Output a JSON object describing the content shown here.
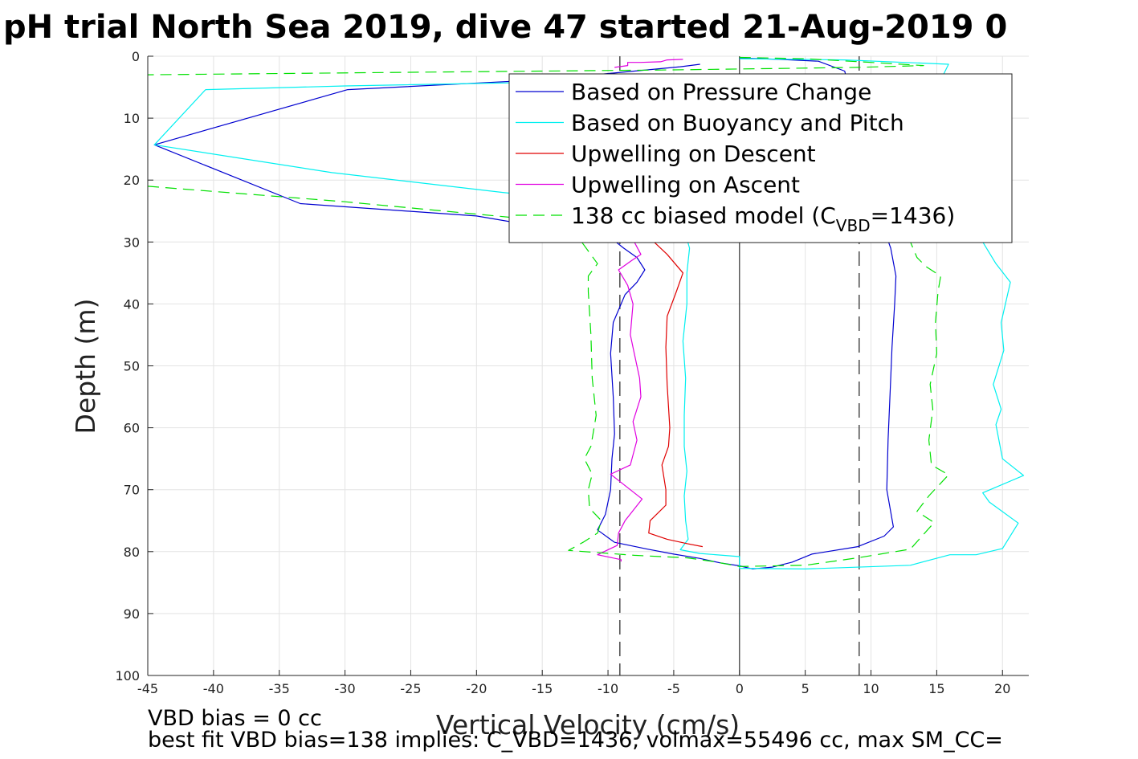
{
  "title": "pH trial North Sea 2019, dive 47 started 21-Aug-2019 0",
  "footer": {
    "line1": "VBD bias = 0 cc",
    "line2": "best fit VBD bias=138 implies: C_VBD=1436, volmax=55496 cc, max SM_CC="
  },
  "colors": {
    "pressure": "#0000d0",
    "buoyancy": "#00f0f0",
    "descent": "#e00000",
    "ascent": "#e000e0",
    "model": "#00e000",
    "grid": "#e3e3e3",
    "ref": "#555555"
  },
  "chart_data": {
    "type": "line",
    "title": "pH trial North Sea 2019, dive 47 started 21-Aug-2019 0",
    "xlabel": "Vertical Velocity (cm/s)",
    "ylabel": "Depth (m)",
    "xlim": [
      -45,
      22
    ],
    "ylim": [
      100,
      0
    ],
    "y_reversed": true,
    "grid": true,
    "xticks": [
      "-45",
      "-40",
      "-35",
      "-30",
      "-25",
      "-20",
      "-15",
      "-10",
      "-5",
      "0",
      "5",
      "10",
      "15",
      "20"
    ],
    "yticks": [
      "0",
      "10",
      "20",
      "30",
      "40",
      "50",
      "60",
      "70",
      "80",
      "90",
      "100"
    ],
    "legend_position": "top-right",
    "legend": [
      {
        "label": "Based on Pressure Change",
        "series": 0
      },
      {
        "label": "Based on Buoyancy and Pitch",
        "series": 1
      },
      {
        "label": "Upwelling on Descent",
        "series": 2
      },
      {
        "label": "Upwelling on Ascent",
        "series": 3
      },
      {
        "label": "138 cc biased model (C",
        "sub": "VBD",
        "suffix": "=1436)",
        "series": 4
      }
    ],
    "reference_lines": {
      "solid_x": [
        0
      ],
      "dashed_x": [
        -9.1,
        9.1
      ]
    },
    "series": [
      {
        "name": "Based on Pressure Change",
        "color": "#0000d0",
        "dash": "",
        "segments": [
          [
            [
              -3,
              1.3
            ],
            [
              -4.5,
              1.7
            ],
            [
              -15,
              3.8
            ],
            [
              -29.8,
              5.4
            ],
            [
              -44.5,
              14.3
            ],
            [
              -33.4,
              23.8
            ],
            [
              -20,
              25.8
            ],
            [
              -9.7,
              29.5
            ],
            [
              -8.8,
              31
            ],
            [
              -7.8,
              32.5
            ],
            [
              -7.2,
              34.5
            ],
            [
              -7.8,
              36.5
            ],
            [
              -8.7,
              38.5
            ],
            [
              -9.6,
              43
            ],
            [
              -9.8,
              48
            ],
            [
              -9.6,
              55
            ],
            [
              -9.5,
              61
            ],
            [
              -9.7,
              65
            ],
            [
              -9.8,
              70
            ],
            [
              -10.2,
              74
            ],
            [
              -10.8,
              76.5
            ],
            [
              -9.5,
              78.5
            ],
            [
              -7,
              79.6
            ],
            [
              -5,
              80.4
            ],
            [
              -3,
              81.1
            ],
            [
              -1.5,
              81.8
            ],
            [
              0,
              82.3
            ],
            [
              1,
              82.8
            ],
            [
              2.5,
              82.5
            ],
            [
              4,
              81.7
            ],
            [
              5.5,
              80.4
            ],
            [
              9,
              79.2
            ],
            [
              11,
              77.5
            ],
            [
              11.7,
              76
            ],
            [
              11.2,
              70
            ],
            [
              11.3,
              62
            ],
            [
              11.5,
              52
            ],
            [
              11.6,
              47
            ],
            [
              11.8,
              40
            ],
            [
              11.9,
              35.5
            ],
            [
              11.5,
              31
            ],
            [
              11,
              28
            ],
            [
              10,
              25
            ],
            [
              9,
              22
            ],
            [
              8,
              20
            ],
            [
              7.8,
              15
            ],
            [
              7.9,
              10
            ],
            [
              8.3,
              5
            ],
            [
              8,
              2.4
            ],
            [
              6,
              0.8
            ],
            [
              3,
              0.5
            ],
            [
              0,
              0.3
            ]
          ]
        ]
      },
      {
        "name": "Based on Buoyancy and Pitch",
        "color": "#00f0f0",
        "dash": "",
        "segments": [
          [
            [
              -3.5,
              3.3
            ],
            [
              -15,
              4.2
            ],
            [
              -30,
              4.8
            ],
            [
              -40.6,
              5.4
            ],
            [
              -44.5,
              14.3
            ],
            [
              -31,
              18.8
            ],
            [
              -18,
              22
            ],
            [
              -9,
              24
            ],
            [
              -6,
              26
            ],
            [
              -4.2,
              28
            ],
            [
              -3.8,
              31
            ],
            [
              -4,
              35
            ],
            [
              -4,
              40
            ],
            [
              -4.3,
              46
            ],
            [
              -4.1,
              52
            ],
            [
              -4.2,
              58
            ],
            [
              -4.2,
              63
            ],
            [
              -4,
              67
            ],
            [
              -4.2,
              71
            ],
            [
              -4.1,
              75
            ],
            [
              -3.9,
              78
            ],
            [
              -4.5,
              79.7
            ],
            [
              -3,
              80.3
            ],
            [
              0,
              80.8
            ],
            [
              0,
              82.7
            ],
            [
              5,
              82.8
            ],
            [
              13,
              82.2
            ],
            [
              16,
              80.5
            ],
            [
              18,
              80.5
            ],
            [
              20,
              79.5
            ],
            [
              21.2,
              75.4
            ],
            [
              19,
              72
            ],
            [
              18.5,
              70.5
            ],
            [
              21.6,
              67.7
            ],
            [
              20,
              65
            ],
            [
              19.5,
              59.5
            ],
            [
              19.9,
              57
            ],
            [
              19.3,
              53
            ],
            [
              20.1,
              47.5
            ],
            [
              19.9,
              43
            ],
            [
              20.6,
              36.5
            ],
            [
              19.5,
              33.5
            ],
            [
              18.5,
              30
            ],
            [
              17.5,
              25
            ],
            [
              17,
              20
            ],
            [
              17,
              15
            ],
            [
              16.5,
              10
            ],
            [
              16.5,
              6
            ],
            [
              15.5,
              3
            ],
            [
              15.9,
              1.3
            ],
            [
              8,
              0.6
            ],
            [
              0,
              0.4
            ]
          ]
        ]
      },
      {
        "name": "Upwelling on Descent",
        "color": "#e00000",
        "dash": "",
        "segments": [
          [
            [
              -5.7,
              3.5
            ],
            [
              -6.5,
              30
            ],
            [
              -5.5,
              32
            ],
            [
              -4.3,
              35
            ],
            [
              -4.8,
              38
            ],
            [
              -5.5,
              42
            ],
            [
              -5.6,
              47
            ],
            [
              -5.5,
              53
            ],
            [
              -5.3,
              60
            ],
            [
              -5.4,
              63
            ],
            [
              -5.9,
              66
            ],
            [
              -5.6,
              70
            ],
            [
              -5.6,
              72.5
            ],
            [
              -6.8,
              75
            ],
            [
              -6.9,
              77
            ],
            [
              -5.5,
              78
            ],
            [
              -4,
              78.7
            ],
            [
              -2.8,
              79.2
            ]
          ]
        ]
      },
      {
        "name": "Upwelling on Ascent",
        "color": "#e000e0",
        "dash": "",
        "segments": [
          [
            [
              -4.3,
              0.5
            ],
            [
              -5.5,
              0.6
            ],
            [
              -6,
              0.9
            ],
            [
              -7.5,
              1
            ],
            [
              -8.5,
              1
            ],
            [
              -8.5,
              1.5
            ],
            [
              -9.5,
              1.8
            ]
          ],
          [
            [
              -8,
              30
            ],
            [
              -7.5,
              32
            ],
            [
              -8.2,
              33
            ],
            [
              -9.2,
              34.5
            ],
            [
              -8.5,
              37
            ],
            [
              -8.1,
              40
            ],
            [
              -8.3,
              45
            ],
            [
              -8,
              48
            ],
            [
              -7.6,
              52
            ],
            [
              -7.5,
              55
            ],
            [
              -8.1,
              59
            ],
            [
              -7.8,
              62
            ],
            [
              -8.3,
              66
            ],
            [
              -9.8,
              67.5
            ],
            [
              -7.4,
              71.5
            ],
            [
              -8.7,
              75
            ],
            [
              -9.2,
              77
            ],
            [
              -9.3,
              79
            ],
            [
              -10.8,
              80.5
            ],
            [
              -9,
              81.3
            ],
            [
              -9,
              81.6
            ]
          ]
        ]
      },
      {
        "name": "138 cc biased model",
        "color": "#00e000",
        "dash": "14,8",
        "segments": [
          [
            [
              0,
              0.2
            ],
            [
              5,
              0.4
            ],
            [
              10,
              1
            ],
            [
              14,
              1.5
            ],
            [
              9,
              1.8
            ],
            [
              -5,
              2.2
            ],
            [
              -25,
              2.6
            ],
            [
              -45,
              3
            ]
          ],
          [
            [
              -45,
              21
            ],
            [
              -30,
              23.5
            ],
            [
              -15,
              26.5
            ],
            [
              -12,
              30
            ],
            [
              -10.8,
              33.5
            ],
            [
              -11.5,
              35.5
            ],
            [
              -11.5,
              38
            ],
            [
              -11.3,
              45
            ],
            [
              -11.2,
              52
            ],
            [
              -10.9,
              58
            ],
            [
              -11.3,
              63
            ],
            [
              -11.8,
              65
            ],
            [
              -11.2,
              67.5
            ],
            [
              -11.5,
              70
            ],
            [
              -11.4,
              73
            ],
            [
              -10.5,
              75
            ],
            [
              -10.8,
              77
            ],
            [
              -11.9,
              78.5
            ],
            [
              -13,
              79.8
            ],
            [
              -8,
              80.6
            ],
            [
              -4,
              81
            ],
            [
              -2,
              81.6
            ],
            [
              0,
              82.4
            ],
            [
              5,
              82.2
            ],
            [
              9,
              81
            ],
            [
              13,
              79.6
            ],
            [
              14.8,
              75.3
            ],
            [
              13.5,
              73.5
            ],
            [
              14.4,
              71
            ],
            [
              15.9,
              67.6
            ],
            [
              14.6,
              66
            ],
            [
              14.4,
              62
            ],
            [
              14.7,
              57
            ],
            [
              14.5,
              53
            ],
            [
              15,
              48
            ],
            [
              14.9,
              43
            ],
            [
              15.1,
              38
            ],
            [
              15.3,
              35.5
            ],
            [
              14.2,
              34
            ],
            [
              13.5,
              32.5
            ],
            [
              13,
              30
            ]
          ]
        ]
      }
    ]
  }
}
